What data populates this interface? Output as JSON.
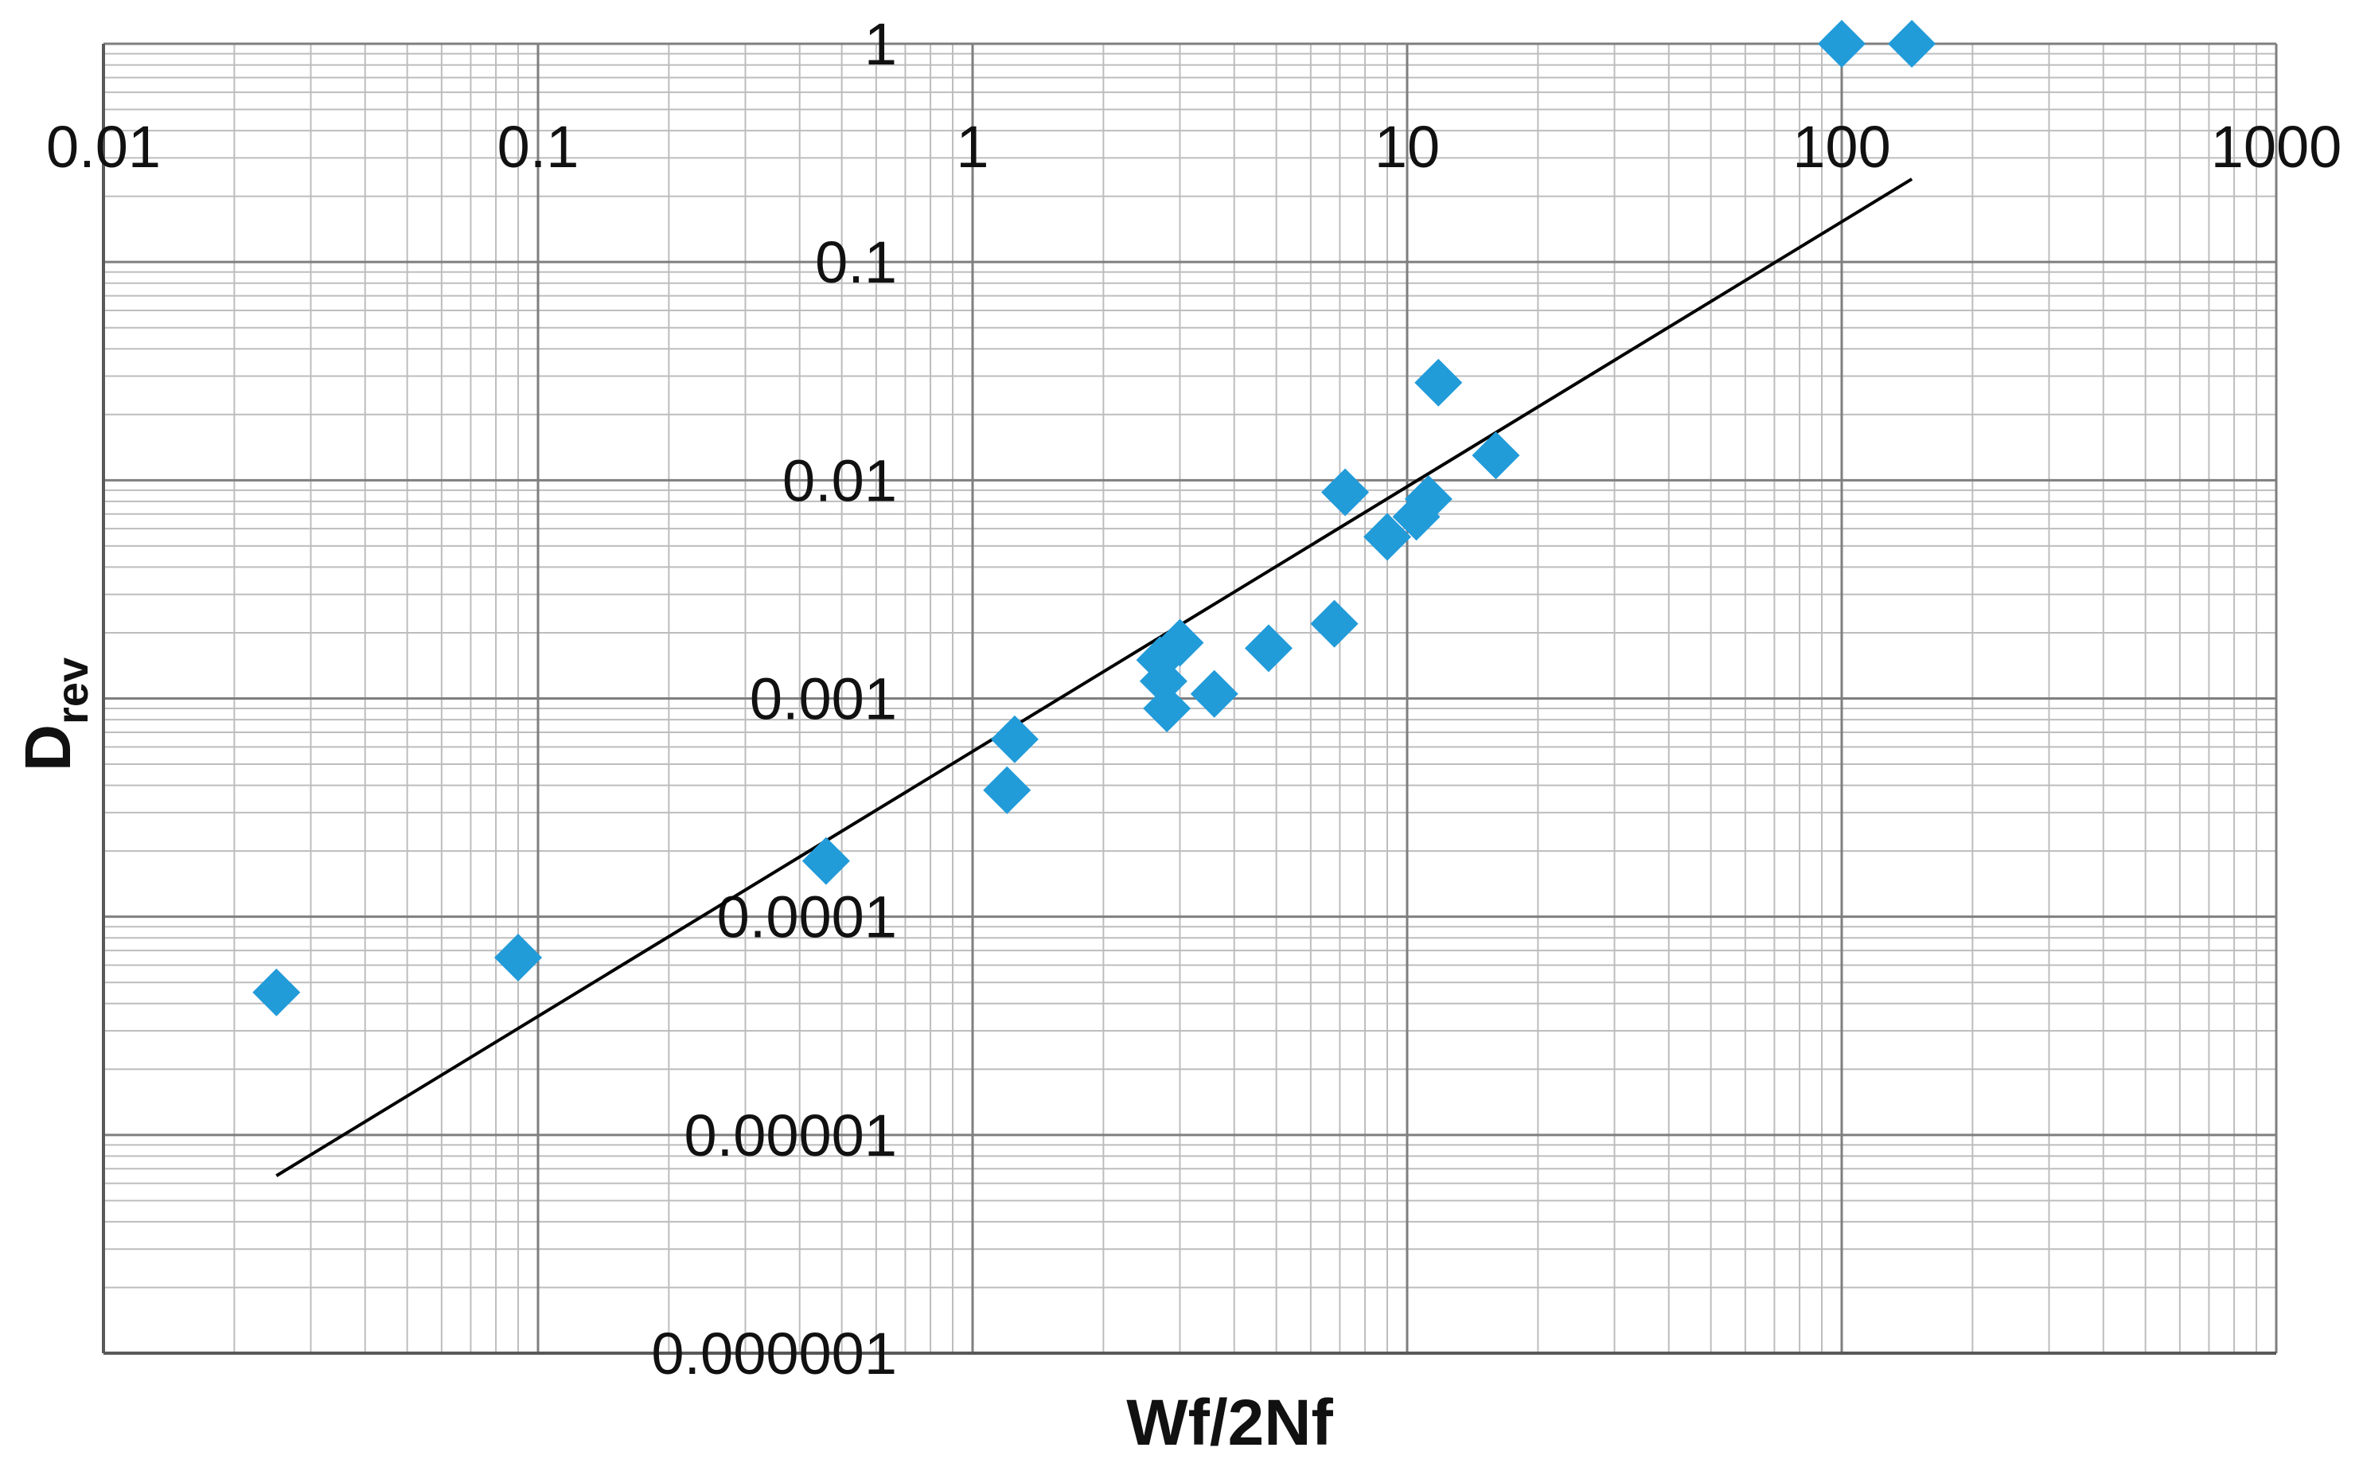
{
  "chart_data": {
    "type": "scatter",
    "title": "",
    "xlabel": "Wf/2Nf",
    "ylabel": {
      "main": "D",
      "subscript": "rev"
    },
    "xscale": "log",
    "yscale": "log",
    "xlim": [
      0.01,
      1000
    ],
    "ylim": [
      1e-06,
      1
    ],
    "x_ticks": [
      "0.01",
      "0.1",
      "1",
      "10",
      "100",
      "1000"
    ],
    "y_ticks": [
      "0.000001",
      "0.00001",
      "0.0001",
      "0.001",
      "0.01",
      "0.1",
      "1"
    ],
    "grid": true,
    "legend": "none",
    "colors": {
      "marker": "#229bd9",
      "trendline": "#000000",
      "grid_major": "#7f7f7f",
      "grid_minor": "#bdbdbd"
    },
    "series": [
      {
        "marker": "diamond",
        "points": [
          {
            "x": 0.025,
            "y": 4.5e-05
          },
          {
            "x": 0.09,
            "y": 6.5e-05
          },
          {
            "x": 0.46,
            "y": 0.00018
          },
          {
            "x": 1.2,
            "y": 0.00038
          },
          {
            "x": 1.25,
            "y": 0.00065
          },
          {
            "x": 2.7,
            "y": 0.0015
          },
          {
            "x": 2.75,
            "y": 0.0012
          },
          {
            "x": 2.8,
            "y": 0.0009
          },
          {
            "x": 3.0,
            "y": 0.0018
          },
          {
            "x": 3.6,
            "y": 0.00105
          },
          {
            "x": 4.8,
            "y": 0.0017
          },
          {
            "x": 6.8,
            "y": 0.0022
          },
          {
            "x": 7.2,
            "y": 0.0088
          },
          {
            "x": 9.0,
            "y": 0.0055
          },
          {
            "x": 10.5,
            "y": 0.0068
          },
          {
            "x": 11.2,
            "y": 0.0082
          },
          {
            "x": 11.8,
            "y": 0.028
          },
          {
            "x": 16.0,
            "y": 0.013
          },
          {
            "x": 100,
            "y": 1.0
          },
          {
            "x": 145,
            "y": 1.0
          }
        ]
      }
    ],
    "trendline": {
      "type": "power",
      "from": {
        "x": 0.025,
        "y": 6.5e-06
      },
      "to": {
        "x": 145,
        "y": 0.24
      }
    }
  }
}
